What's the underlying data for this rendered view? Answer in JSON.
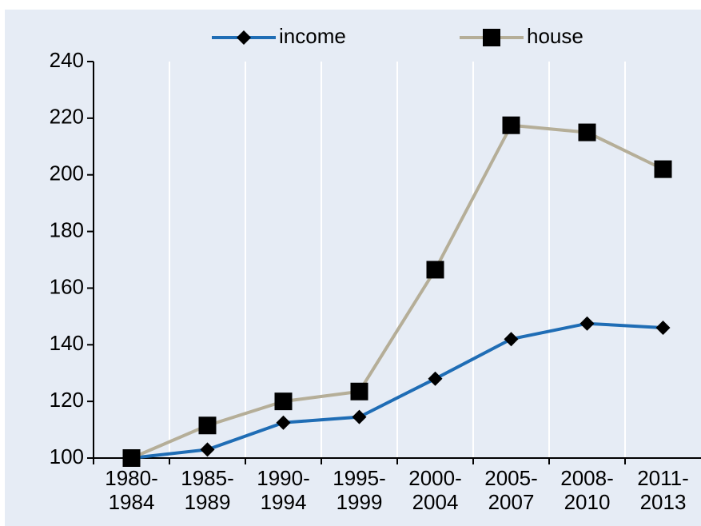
{
  "chart_data": {
    "type": "line",
    "categories": [
      "1980-\n1984",
      "1985-\n1989",
      "1990-\n1994",
      "1995-\n1999",
      "2000-\n2004",
      "2005-\n2007",
      "2008-\n2010",
      "2011-\n2013"
    ],
    "series": [
      {
        "name": "income",
        "color": "#1f6db5",
        "marker": "diamond",
        "values": [
          100,
          103,
          112.5,
          114.5,
          128,
          142,
          147.5,
          146
        ]
      },
      {
        "name": "house",
        "color": "#b5ae98",
        "marker": "square",
        "values": [
          100,
          111.5,
          120,
          123.5,
          166.5,
          217.5,
          215,
          202
        ]
      }
    ],
    "ylim": [
      100,
      240
    ],
    "yticks": [
      100,
      120,
      140,
      160,
      180,
      200,
      220,
      240
    ],
    "legend": "top"
  }
}
